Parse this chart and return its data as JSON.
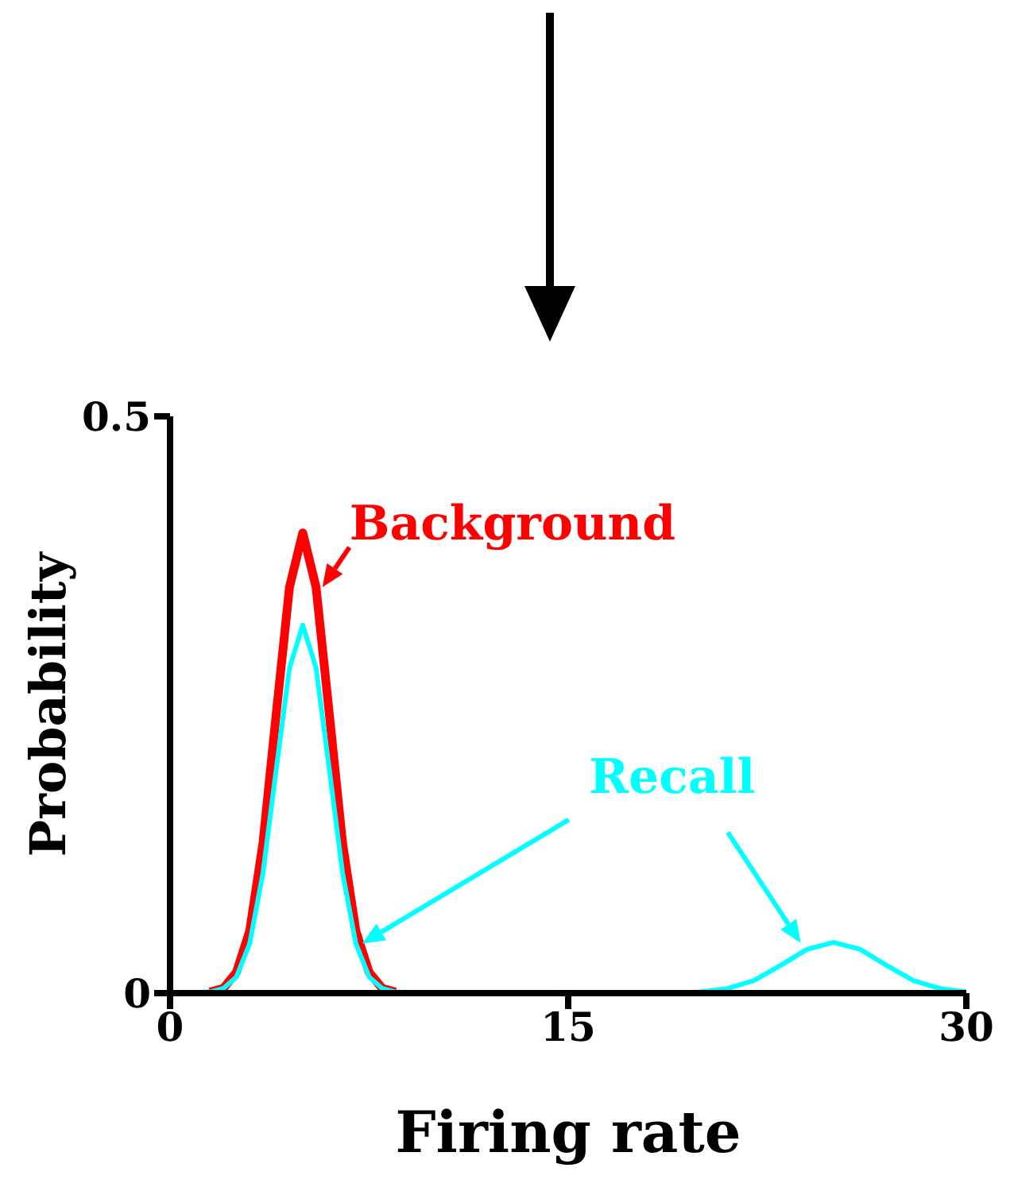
{
  "chart_data": {
    "type": "line",
    "xlabel": "Firing rate",
    "ylabel": "Probability",
    "xlim": [
      0,
      30
    ],
    "xticks": [
      0,
      15,
      30
    ],
    "ylim": [
      0,
      0.5
    ],
    "yticks": [
      0,
      0.5
    ],
    "grid": false,
    "legend": "top right",
    "marker": "none",
    "line_style": "solid",
    "series": [
      {
        "name": "Background",
        "color": "#ff0000",
        "x": [
          1.5,
          2,
          2.5,
          3,
          3.5,
          4,
          4.5,
          5,
          5.5,
          6,
          6.5,
          7,
          7.5,
          8,
          8.5
        ],
        "values": [
          0.001,
          0.004,
          0.018,
          0.054,
          0.13,
          0.242,
          0.352,
          0.399,
          0.352,
          0.242,
          0.13,
          0.054,
          0.018,
          0.004,
          0.001
        ]
      },
      {
        "name": "Recall",
        "color": "#00ffff",
        "x": [
          0,
          1.5,
          2,
          2.5,
          3,
          3.5,
          4,
          4.5,
          5,
          5.5,
          6,
          6.5,
          7,
          7.5,
          8,
          8.5,
          10,
          15,
          19,
          20,
          21,
          22,
          23,
          24,
          25,
          26,
          27,
          28,
          29,
          30
        ],
        "values": [
          0,
          0.001,
          0.004,
          0.014,
          0.043,
          0.104,
          0.194,
          0.282,
          0.319,
          0.282,
          0.194,
          0.104,
          0.043,
          0.014,
          0.004,
          0.001,
          0,
          0,
          0,
          0.001,
          0.004,
          0.011,
          0.024,
          0.038,
          0.044,
          0.038,
          0.024,
          0.011,
          0.004,
          0.001
        ]
      }
    ]
  }
}
